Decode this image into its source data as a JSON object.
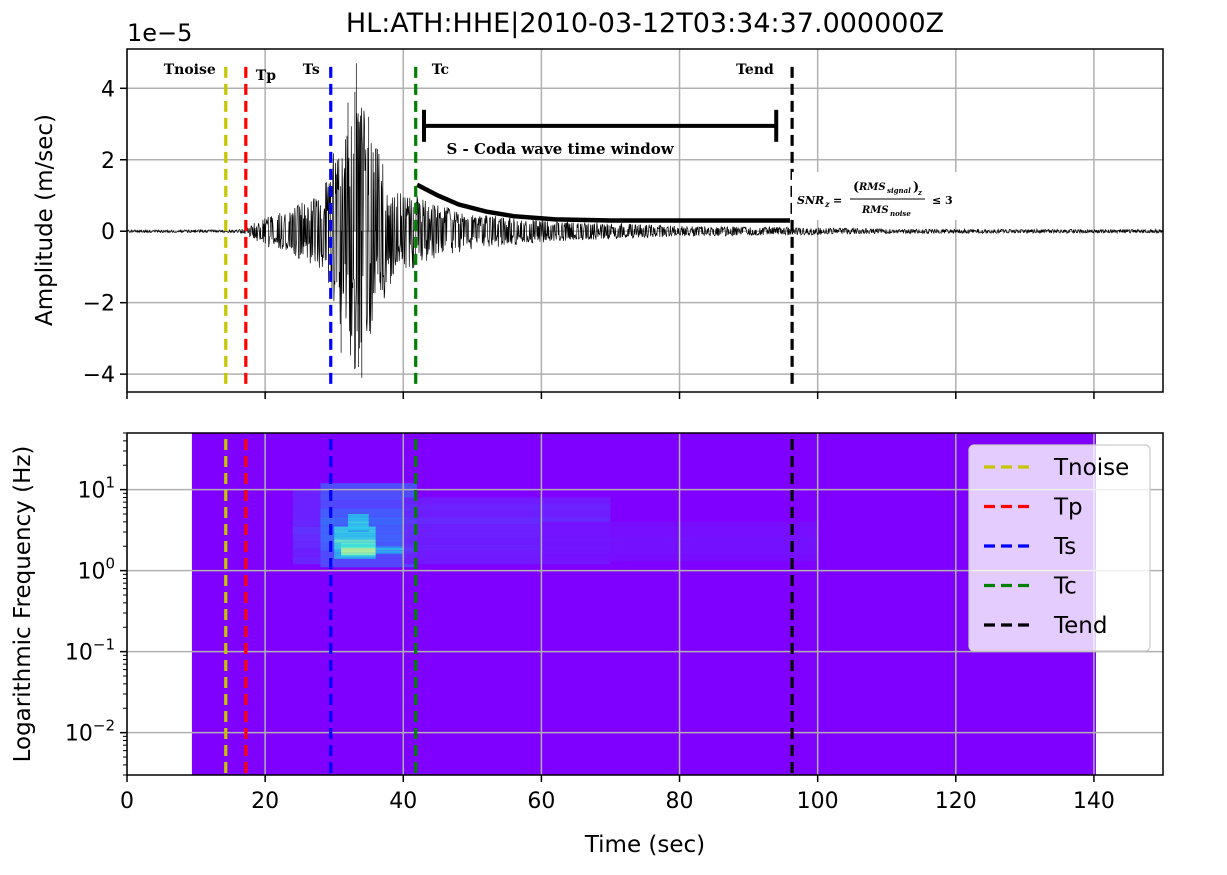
{
  "chart_data": [
    {
      "type": "line",
      "title": "HL:ATH:HHE|2010-03-12T03:34:37.000000Z",
      "ylabel": "Amplitude (m/sec)",
      "xlabel": "",
      "offset_text": "1e−5",
      "xlim": [
        0,
        150
      ],
      "ylim": [
        -4.5,
        5.1
      ],
      "xticks": [
        0,
        20,
        40,
        60,
        80,
        100,
        120,
        140
      ],
      "yticks": [
        4,
        2,
        0,
        -2,
        -4
      ],
      "ytick_labels": [
        "4",
        "2",
        "0",
        "−2",
        "−4"
      ],
      "grid": true,
      "waveform_envelope": {
        "onset": 17.5,
        "envelope_points": [
          [
            16,
            0.03
          ],
          [
            17.5,
            0.1
          ],
          [
            20,
            0.35
          ],
          [
            24,
            0.55
          ],
          [
            28,
            0.9
          ],
          [
            30,
            1.8
          ],
          [
            32,
            2.6
          ],
          [
            33,
            3.4
          ],
          [
            34,
            2.9
          ],
          [
            36,
            2.0
          ],
          [
            38,
            1.2
          ],
          [
            40,
            0.95
          ],
          [
            42,
            0.8
          ],
          [
            45,
            0.6
          ],
          [
            50,
            0.4
          ],
          [
            60,
            0.25
          ],
          [
            70,
            0.18
          ],
          [
            80,
            0.12
          ],
          [
            90,
            0.1
          ],
          [
            96,
            0.09
          ],
          [
            110,
            0.05
          ],
          [
            150,
            0.04
          ]
        ],
        "spikes": [
          [
            33,
            3.9
          ],
          [
            33.5,
            -3.8
          ],
          [
            32,
            3.6
          ],
          [
            32.5,
            -2.9
          ],
          [
            35,
            3.2
          ],
          [
            31,
            -3.4
          ],
          [
            33.2,
            4.7
          ],
          [
            34,
            -4.1
          ],
          [
            36,
            2.3
          ]
        ]
      },
      "coda_curve": [
        [
          42,
          1.3
        ],
        [
          45,
          1.0
        ],
        [
          48,
          0.75
        ],
        [
          52,
          0.55
        ],
        [
          56,
          0.42
        ],
        [
          62,
          0.33
        ],
        [
          70,
          0.3
        ],
        [
          96,
          0.3
        ]
      ],
      "picks": [
        {
          "name": "Tnoise",
          "time": 14.3,
          "color": "#c6c600",
          "label": "Tnoise"
        },
        {
          "name": "Tp",
          "time": 17.2,
          "color": "#ff0000",
          "label": "Tp"
        },
        {
          "name": "Ts",
          "time": 29.5,
          "color": "#0000ff",
          "label": "Ts"
        },
        {
          "name": "Tc",
          "time": 41.8,
          "color": "#008000",
          "label": "Tc"
        },
        {
          "name": "Tend",
          "time": 96.3,
          "color": "#000000",
          "label": "Tend"
        }
      ],
      "coda_window": {
        "start": 43,
        "end": 94,
        "y": 2.95,
        "label": "S - Coda wave time window"
      },
      "snr_annotation": {
        "prefix": "SNR",
        "sub_z": "z",
        "rms": "RMS",
        "signal": "signal",
        "noise": "noise",
        "condition": "≤ 3",
        "eq": "="
      }
    },
    {
      "type": "heatmap",
      "ylabel": "Logarithmic Frequency (Hz)",
      "xlabel": "Time (sec)",
      "xlim": [
        0,
        150
      ],
      "yscale": "log",
      "ylim": [
        0.003,
        50
      ],
      "xticks": [
        0,
        20,
        40,
        60,
        80,
        100,
        120,
        140
      ],
      "ytick_labels": [
        {
          "base": "10",
          "exp": "1"
        },
        {
          "base": "10",
          "exp": "0"
        },
        {
          "base": "10",
          "exp": "−1"
        },
        {
          "base": "10",
          "exp": "−2"
        }
      ],
      "ytick_values": [
        10,
        1,
        0.1,
        0.01
      ],
      "spectrogram_extent": {
        "t_start": 9.4,
        "t_end": 140.3
      },
      "background_color": "#7f00ff",
      "energy_blobs": [
        {
          "t0": 24,
          "t1": 30,
          "f0": 1.2,
          "f1": 10,
          "level": 0.12
        },
        {
          "t0": 28,
          "t1": 42,
          "f0": 1.1,
          "f1": 12,
          "level": 0.25
        },
        {
          "t0": 30,
          "t1": 36,
          "f0": 1.4,
          "f1": 3.5,
          "level": 0.6
        },
        {
          "t0": 31,
          "t1": 36,
          "f0": 1.5,
          "f1": 2.2,
          "level": 0.8
        },
        {
          "t0": 32,
          "t1": 35,
          "f0": 3.0,
          "f1": 5.0,
          "level": 0.55
        },
        {
          "t0": 36,
          "t1": 42,
          "f0": 1.6,
          "f1": 2.0,
          "level": 0.45
        },
        {
          "t0": 40,
          "t1": 70,
          "f0": 1.2,
          "f1": 8,
          "level": 0.1
        },
        {
          "t0": 60,
          "t1": 100,
          "f0": 1.3,
          "f1": 4,
          "level": 0.05
        }
      ],
      "legend_position": "upper right",
      "legend": [
        "Tnoise",
        "Tp",
        "Ts",
        "Tc",
        "Tend"
      ],
      "grid": true
    }
  ]
}
